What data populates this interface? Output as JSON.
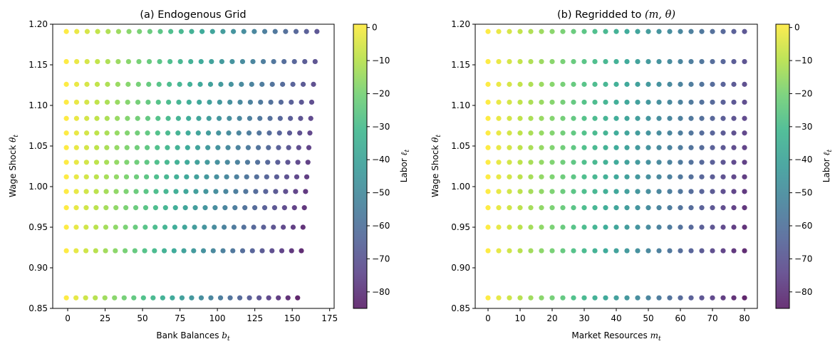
{
  "chart_data": [
    {
      "type": "scatter",
      "title": "(a) Endogenous Grid",
      "xlabel": {
        "text": "Bank Balances ",
        "var": "b",
        "sub": "t"
      },
      "ylabel": {
        "text": "Wage Shock ",
        "var": "θ",
        "sub": "t"
      },
      "xlim": [
        -10,
        178
      ],
      "ylim": [
        0.85,
        1.2
      ],
      "xticks": [
        0,
        25,
        50,
        75,
        100,
        125,
        150,
        175
      ],
      "yticks": [
        0.85,
        0.9,
        0.95,
        1.0,
        1.05,
        1.1,
        1.15,
        1.2
      ],
      "ytick_format": 2,
      "grid": false,
      "points_per_row": 25,
      "rows": [
        {
          "theta": 1.191,
          "x_start": -0.9,
          "x_end": 166.5,
          "labor_end": -70
        },
        {
          "theta": 1.154,
          "x_start": -0.9,
          "x_end": 165.3,
          "labor_end": -71
        },
        {
          "theta": 1.126,
          "x_start": -0.9,
          "x_end": 164.2,
          "labor_end": -72
        },
        {
          "theta": 1.104,
          "x_start": -0.9,
          "x_end": 163.0,
          "labor_end": -73
        },
        {
          "theta": 1.084,
          "x_start": -0.9,
          "x_end": 162.4,
          "labor_end": -74
        },
        {
          "theta": 1.066,
          "x_start": -0.9,
          "x_end": 161.8,
          "labor_end": -75
        },
        {
          "theta": 1.048,
          "x_start": -0.9,
          "x_end": 161.1,
          "labor_end": -76
        },
        {
          "theta": 1.03,
          "x_start": -0.9,
          "x_end": 160.5,
          "labor_end": -77
        },
        {
          "theta": 1.012,
          "x_start": -0.9,
          "x_end": 159.7,
          "labor_end": -78
        },
        {
          "theta": 0.994,
          "x_start": -0.9,
          "x_end": 158.9,
          "labor_end": -79
        },
        {
          "theta": 0.974,
          "x_start": -0.9,
          "x_end": 158.1,
          "labor_end": -80
        },
        {
          "theta": 0.95,
          "x_start": -0.9,
          "x_end": 157.2,
          "labor_end": -81
        },
        {
          "theta": 0.921,
          "x_start": -0.9,
          "x_end": 156.1,
          "labor_end": -83
        },
        {
          "theta": 0.863,
          "x_start": -0.9,
          "x_end": 153.6,
          "labor_end": -85
        }
      ],
      "colorbar": {
        "label": {
          "text": "Labor ",
          "var": "ℓ",
          "sub": "t"
        },
        "colormap": "viridis",
        "range": [
          -85,
          1
        ],
        "ticks": [
          0,
          -10,
          -20,
          -30,
          -40,
          -50,
          -60,
          -70,
          -80
        ]
      }
    },
    {
      "type": "scatter",
      "title": {
        "text": "(b) Regridded to ",
        "math": "(m, θ)"
      },
      "xlabel": {
        "text": "Market Resources ",
        "var": "m",
        "sub": "t"
      },
      "ylabel": {
        "text": "Wage Shock ",
        "var": "θ",
        "sub": "t"
      },
      "xlim": [
        -4,
        84
      ],
      "ylim": [
        0.85,
        1.2
      ],
      "xticks": [
        0,
        10,
        20,
        30,
        40,
        50,
        60,
        70,
        80
      ],
      "yticks": [
        0.85,
        0.9,
        0.95,
        1.0,
        1.05,
        1.1,
        1.15,
        1.2
      ],
      "ytick_format": 2,
      "grid": false,
      "points_per_row": 25,
      "rows": [
        {
          "theta": 1.191,
          "x_start": 0,
          "x_end": 80,
          "labor_end": -70
        },
        {
          "theta": 1.154,
          "x_start": 0,
          "x_end": 80,
          "labor_end": -71
        },
        {
          "theta": 1.126,
          "x_start": 0,
          "x_end": 80,
          "labor_end": -72
        },
        {
          "theta": 1.104,
          "x_start": 0,
          "x_end": 80,
          "labor_end": -73
        },
        {
          "theta": 1.084,
          "x_start": 0,
          "x_end": 80,
          "labor_end": -74
        },
        {
          "theta": 1.066,
          "x_start": 0,
          "x_end": 80,
          "labor_end": -75
        },
        {
          "theta": 1.048,
          "x_start": 0,
          "x_end": 80,
          "labor_end": -76
        },
        {
          "theta": 1.03,
          "x_start": 0,
          "x_end": 80,
          "labor_end": -77
        },
        {
          "theta": 1.012,
          "x_start": 0,
          "x_end": 80,
          "labor_end": -78
        },
        {
          "theta": 0.994,
          "x_start": 0,
          "x_end": 80,
          "labor_end": -79
        },
        {
          "theta": 0.974,
          "x_start": 0,
          "x_end": 80,
          "labor_end": -80
        },
        {
          "theta": 0.95,
          "x_start": 0,
          "x_end": 80,
          "labor_end": -81
        },
        {
          "theta": 0.921,
          "x_start": 0,
          "x_end": 80,
          "labor_end": -83
        },
        {
          "theta": 0.863,
          "x_start": 0,
          "x_end": 80,
          "labor_end": -85
        }
      ],
      "colorbar": {
        "label": {
          "text": "Labor ",
          "var": "ℓ",
          "sub": "t"
        },
        "colormap": "viridis",
        "range": [
          -85,
          1
        ],
        "ticks": [
          0,
          -10,
          -20,
          -30,
          -40,
          -50,
          -60,
          -70,
          -80
        ]
      }
    }
  ]
}
